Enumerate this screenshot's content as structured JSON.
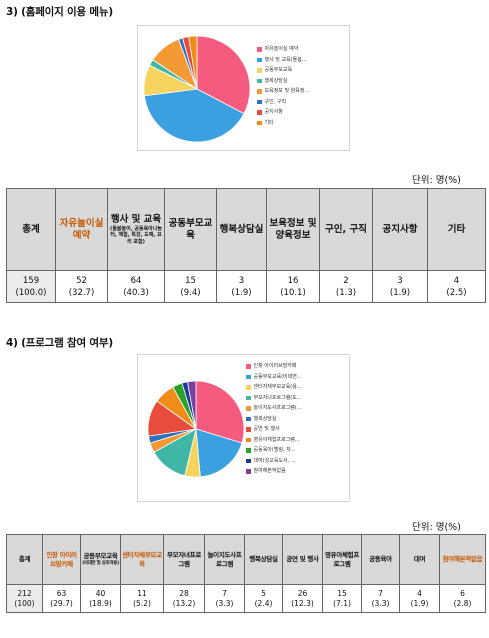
{
  "section1": {
    "title": "3) (홈페이지 이용 메뉴)",
    "unit": "단위: 명(%)",
    "legend": [
      {
        "label": "자유놀이실 예약",
        "color": "#f45b7f"
      },
      {
        "label": "행사 및 교육(돌봄...",
        "color": "#3aa0e0"
      },
      {
        "label": "공동부모교육",
        "color": "#f6d35c"
      },
      {
        "label": "행복상담실",
        "color": "#40b7a6"
      },
      {
        "label": "보육정보 및 양육정...",
        "color": "#f39a35"
      },
      {
        "label": "구인, 구직",
        "color": "#2e6fbf"
      },
      {
        "label": "공지사항",
        "color": "#e84c3d"
      },
      {
        "label": "기타",
        "color": "#f08c1a"
      }
    ],
    "headers": [
      "총계",
      "자유놀이실 예약",
      "행사 및 교육",
      "공동부모교육",
      "행복상담실",
      "보육정보 및 양육정보",
      "구인, 구직",
      "공지사항",
      "기타"
    ],
    "header_note": "(돌봄놀이, 공동육아나눔터, 체험, 특강, 도예, 요리 포함)",
    "counts": [
      "159",
      "52",
      "64",
      "15",
      "3",
      "16",
      "2",
      "3",
      "4"
    ],
    "percents": [
      "(100.0)",
      "(32.7)",
      "(40.3)",
      "(9.4)",
      "(1.9)",
      "(10.1)",
      "(1.3)",
      "(1.9)",
      "(2.5)"
    ]
  },
  "section2": {
    "title": "4) (프로그램 참여 여부)",
    "unit": "단위: 명(%)",
    "legend": [
      {
        "label": "인창 아이러브맘카페",
        "color": "#f45b7f"
      },
      {
        "label": "공동부모교육(비대면...",
        "color": "#3aa0e0"
      },
      {
        "label": "센터자체부모교육(용...",
        "color": "#f6d35c"
      },
      {
        "label": "부모자녀프로그램(도...",
        "color": "#40b7a6"
      },
      {
        "label": "놀이지도사프로그램(...",
        "color": "#f39a35"
      },
      {
        "label": "행복상담실",
        "color": "#2e6fbf"
      },
      {
        "label": "공연 및 행사",
        "color": "#e84c3d"
      },
      {
        "label": "영유아체험프로그램...",
        "color": "#f08c1a"
      },
      {
        "label": "공동육아(벨링, 자...",
        "color": "#2ca02c"
      },
      {
        "label": "대여(성교육도서, ...",
        "color": "#1f3a93"
      },
      {
        "label": "참여해본적없음",
        "color": "#7b3fa0"
      }
    ],
    "headers": [
      "총계",
      "인창 아이러브맘카페",
      "공동부모교육",
      "센터자체부모교육",
      "부모자녀프로그램",
      "놀이지도사프로그램",
      "행복상담실",
      "공연 및 행사",
      "영유아체험프로그램",
      "공동육아",
      "대여",
      "참여해본적없음"
    ],
    "header_note": "(비대면 및 상호작용)",
    "counts": [
      "212",
      "63",
      "40",
      "11",
      "28",
      "7",
      "5",
      "26",
      "15",
      "7",
      "4",
      "6"
    ],
    "percents": [
      "(100)",
      "(29.7)",
      "(18.9)",
      "(5.2)",
      "(13.2)",
      "(3.3)",
      "(2.4)",
      "(12.3)",
      "(7.1)",
      "(3.3)",
      "(1.9)",
      "(2.8)"
    ]
  },
  "chart_data": [
    {
      "type": "pie",
      "title": "",
      "categories": [
        "자유놀이실 예약",
        "행사 및 교육(돌봄...",
        "공동부모교육",
        "행복상담실",
        "보육정보 및 양육정...",
        "구인, 구직",
        "공지사항",
        "기타"
      ],
      "values": [
        52,
        64,
        15,
        3,
        16,
        2,
        3,
        4
      ],
      "colors": [
        "#f45b7f",
        "#3aa0e0",
        "#f6d35c",
        "#40b7a6",
        "#f39a35",
        "#2e6fbf",
        "#e84c3d",
        "#f08c1a"
      ],
      "legend": "right"
    },
    {
      "type": "pie",
      "title": "",
      "categories": [
        "인창 아이러브맘카페",
        "공동부모교육(비대면...",
        "센터자체부모교육(용...",
        "부모자녀프로그램(도...",
        "놀이지도사프로그램(...",
        "행복상담실",
        "공연 및 행사",
        "영유아체험프로그램...",
        "공동육아(벨링, 자...",
        "대여(성교육도서, ...",
        "참여해본적없음"
      ],
      "values": [
        63,
        40,
        11,
        28,
        7,
        5,
        26,
        15,
        7,
        4,
        6
      ],
      "colors": [
        "#f45b7f",
        "#3aa0e0",
        "#f6d35c",
        "#40b7a6",
        "#f39a35",
        "#2e6fbf",
        "#e84c3d",
        "#f08c1a",
        "#2ca02c",
        "#1f3a93",
        "#7b3fa0"
      ],
      "legend": "right"
    }
  ]
}
